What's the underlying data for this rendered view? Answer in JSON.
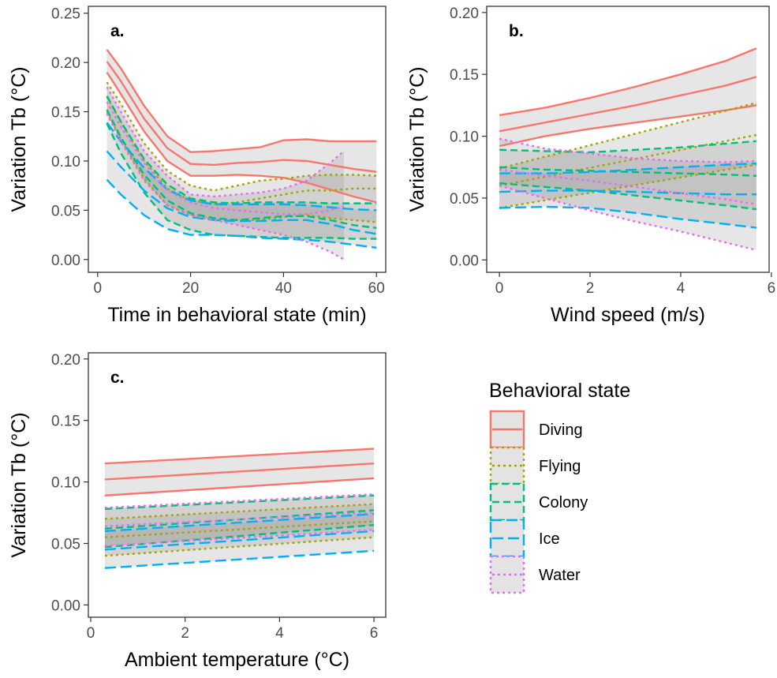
{
  "legend": {
    "title": "Behavioral state",
    "items": [
      {
        "label": "Diving",
        "color": "#F8766D",
        "dash": "solid"
      },
      {
        "label": "Flying",
        "color": "#A3A500",
        "dash": "dotted"
      },
      {
        "label": "Colony",
        "color": "#00BF7D",
        "dash": "dashed"
      },
      {
        "label": "Ice",
        "color": "#00B0F6",
        "dash": "longdash"
      },
      {
        "label": "Water",
        "color": "#E76BF3",
        "dash": "dotted"
      }
    ]
  },
  "chart_data": [
    {
      "type": "line",
      "panel_label": "a.",
      "xlabel": "Time in behavioral state (min)",
      "ylabel": "Variation Tb (°C)",
      "xlim": [
        -2,
        62
      ],
      "ylim": [
        -0.013,
        0.257
      ],
      "xticks": [
        "0",
        "20",
        "40",
        "60"
      ],
      "yticks": [
        "0.00",
        "0.05",
        "0.10",
        "0.15",
        "0.20",
        "0.25"
      ],
      "grid": false,
      "series": [
        {
          "name": "Diving",
          "x": [
            2,
            5,
            10,
            15,
            20,
            25,
            30,
            35,
            40,
            45,
            50,
            55,
            60
          ],
          "fit": [
            0.201,
            0.181,
            0.143,
            0.113,
            0.097,
            0.096,
            0.098,
            0.099,
            0.101,
            0.1,
            0.096,
            0.092,
            0.089
          ],
          "lower": [
            0.19,
            0.168,
            0.13,
            0.1,
            0.085,
            0.085,
            0.086,
            0.085,
            0.083,
            0.078,
            0.071,
            0.064,
            0.058
          ],
          "upper": [
            0.213,
            0.194,
            0.156,
            0.125,
            0.109,
            0.11,
            0.112,
            0.114,
            0.121,
            0.122,
            0.12,
            0.12,
            0.12
          ]
        },
        {
          "name": "Flying",
          "x": [
            2,
            5,
            10,
            15,
            20,
            25,
            30,
            35,
            40,
            45,
            50,
            55,
            60
          ],
          "fit": [
            0.165,
            0.14,
            0.1,
            0.072,
            0.06,
            0.056,
            0.058,
            0.062,
            0.066,
            0.07,
            0.07,
            0.072,
            0.072
          ],
          "lower": [
            0.15,
            0.122,
            0.082,
            0.055,
            0.045,
            0.04,
            0.04,
            0.04,
            0.043,
            0.045,
            0.042,
            0.04,
            0.038
          ],
          "upper": [
            0.18,
            0.158,
            0.118,
            0.09,
            0.075,
            0.07,
            0.075,
            0.08,
            0.082,
            0.085,
            0.086,
            0.086,
            0.085
          ]
        },
        {
          "name": "Colony",
          "x": [
            2,
            5,
            10,
            15,
            20,
            25,
            30,
            35,
            40,
            45,
            50,
            55,
            60
          ],
          "fit": [
            0.152,
            0.124,
            0.086,
            0.06,
            0.047,
            0.042,
            0.04,
            0.042,
            0.044,
            0.044,
            0.04,
            0.035,
            0.032
          ],
          "lower": [
            0.138,
            0.108,
            0.068,
            0.04,
            0.03,
            0.025,
            0.024,
            0.023,
            0.022,
            0.022,
            0.022,
            0.021,
            0.021
          ],
          "upper": [
            0.166,
            0.14,
            0.102,
            0.076,
            0.062,
            0.058,
            0.057,
            0.058,
            0.058,
            0.058,
            0.057,
            0.057,
            0.057
          ]
        },
        {
          "name": "Ice",
          "x": [
            2,
            5,
            10,
            15,
            20,
            25,
            30,
            35,
            40,
            45,
            50,
            55,
            60
          ],
          "fit": [
            0.11,
            0.094,
            0.07,
            0.052,
            0.043,
            0.04,
            0.039,
            0.039,
            0.04,
            0.04,
            0.036,
            0.03,
            0.026
          ],
          "lower": [
            0.081,
            0.066,
            0.045,
            0.031,
            0.025,
            0.025,
            0.024,
            0.022,
            0.021,
            0.02,
            0.018,
            0.015,
            0.012
          ],
          "upper": [
            0.139,
            0.12,
            0.093,
            0.071,
            0.06,
            0.056,
            0.056,
            0.056,
            0.056,
            0.055,
            0.053,
            0.051,
            0.05
          ]
        },
        {
          "name": "Water",
          "x": [
            2,
            5,
            10,
            15,
            20,
            25,
            30,
            35,
            40,
            45,
            50,
            53
          ],
          "fit": [
            0.16,
            0.135,
            0.098,
            0.07,
            0.058,
            0.052,
            0.05,
            0.048,
            0.046,
            0.046,
            0.05,
            0.054
          ],
          "lower": [
            0.148,
            0.12,
            0.08,
            0.055,
            0.045,
            0.04,
            0.035,
            0.03,
            0.025,
            0.018,
            0.008,
            0.0
          ],
          "upper": [
            0.175,
            0.15,
            0.11,
            0.085,
            0.066,
            0.064,
            0.066,
            0.068,
            0.072,
            0.08,
            0.098,
            0.11
          ]
        }
      ]
    },
    {
      "type": "line",
      "panel_label": "b.",
      "xlabel": "Wind speed (m/s)",
      "ylabel": "Variation Tb (°C)",
      "xlim": [
        -0.28,
        5.95
      ],
      "ylim": [
        -0.01,
        0.205
      ],
      "xticks": [
        "0",
        "2",
        "4",
        "6"
      ],
      "yticks": [
        "0.00",
        "0.05",
        "0.10",
        "0.15",
        "0.20"
      ],
      "grid": false,
      "series": [
        {
          "name": "Diving",
          "x": [
            0,
            1,
            2,
            3,
            4,
            5,
            5.67
          ],
          "fit": [
            0.104,
            0.111,
            0.118,
            0.125,
            0.133,
            0.141,
            0.148
          ],
          "lower": [
            0.092,
            0.1,
            0.106,
            0.111,
            0.116,
            0.121,
            0.125
          ],
          "upper": [
            0.117,
            0.123,
            0.131,
            0.14,
            0.15,
            0.161,
            0.171
          ]
        },
        {
          "name": "Flying",
          "x": [
            0,
            5.67
          ],
          "fit": [
            0.06,
            0.101
          ],
          "lower": [
            0.042,
            0.077
          ],
          "upper": [
            0.074,
            0.127
          ]
        },
        {
          "name": "Colony",
          "x": [
            0,
            1,
            2,
            3,
            4,
            5,
            5.67
          ],
          "fit": [
            0.075,
            0.073,
            0.072,
            0.071,
            0.07,
            0.069,
            0.068
          ],
          "lower": [
            0.062,
            0.059,
            0.056,
            0.052,
            0.048,
            0.044,
            0.041
          ],
          "upper": [
            0.089,
            0.088,
            0.087,
            0.089,
            0.091,
            0.094,
            0.096
          ]
        },
        {
          "name": "Ice",
          "x": [
            0,
            1,
            2,
            3,
            4,
            5,
            5.67
          ],
          "fit": [
            0.055,
            0.056,
            0.056,
            0.055,
            0.054,
            0.053,
            0.053
          ],
          "lower": [
            0.042,
            0.043,
            0.042,
            0.038,
            0.033,
            0.029,
            0.026
          ],
          "upper": [
            0.07,
            0.07,
            0.071,
            0.073,
            0.075,
            0.077,
            0.078
          ]
        },
        {
          "name": "Water",
          "x": [
            0,
            1,
            2,
            3,
            4,
            5,
            5.67
          ],
          "fit": [
            0.073,
            0.068,
            0.064,
            0.059,
            0.054,
            0.049,
            0.045
          ],
          "lower": [
            0.06,
            0.05,
            0.04,
            0.031,
            0.023,
            0.014,
            0.008
          ],
          "upper": [
            0.098,
            0.09,
            0.086,
            0.082,
            0.08,
            0.079,
            0.08
          ]
        }
      ]
    },
    {
      "type": "line",
      "panel_label": "c.",
      "xlabel": "Ambient temperature (°C)",
      "ylabel": "Variation Tb (°C)",
      "xlim": [
        -0.05,
        6.25
      ],
      "ylim": [
        -0.01,
        0.205
      ],
      "xticks": [
        "0",
        "2",
        "4",
        "6"
      ],
      "yticks": [
        "0.00",
        "0.05",
        "0.10",
        "0.15",
        "0.20"
      ],
      "grid": false,
      "series": [
        {
          "name": "Diving",
          "x": [
            0.3,
            6
          ],
          "fit": [
            0.102,
            0.115
          ],
          "lower": [
            0.089,
            0.103
          ],
          "upper": [
            0.115,
            0.127
          ]
        },
        {
          "name": "Flying",
          "x": [
            0.3,
            6
          ],
          "fit": [
            0.055,
            0.068
          ],
          "lower": [
            0.04,
            0.055
          ],
          "upper": [
            0.07,
            0.082
          ]
        },
        {
          "name": "Colony",
          "x": [
            0.3,
            6
          ],
          "fit": [
            0.062,
            0.077
          ],
          "lower": [
            0.047,
            0.065
          ],
          "upper": [
            0.078,
            0.089
          ]
        },
        {
          "name": "Ice",
          "x": [
            0.3,
            6
          ],
          "fit": [
            0.045,
            0.06
          ],
          "lower": [
            0.03,
            0.044
          ],
          "upper": [
            0.06,
            0.074
          ]
        },
        {
          "name": "Water",
          "x": [
            0.3,
            6
          ],
          "fit": [
            0.064,
            0.075
          ],
          "lower": [
            0.048,
            0.061
          ],
          "upper": [
            0.079,
            0.09
          ]
        }
      ]
    }
  ]
}
